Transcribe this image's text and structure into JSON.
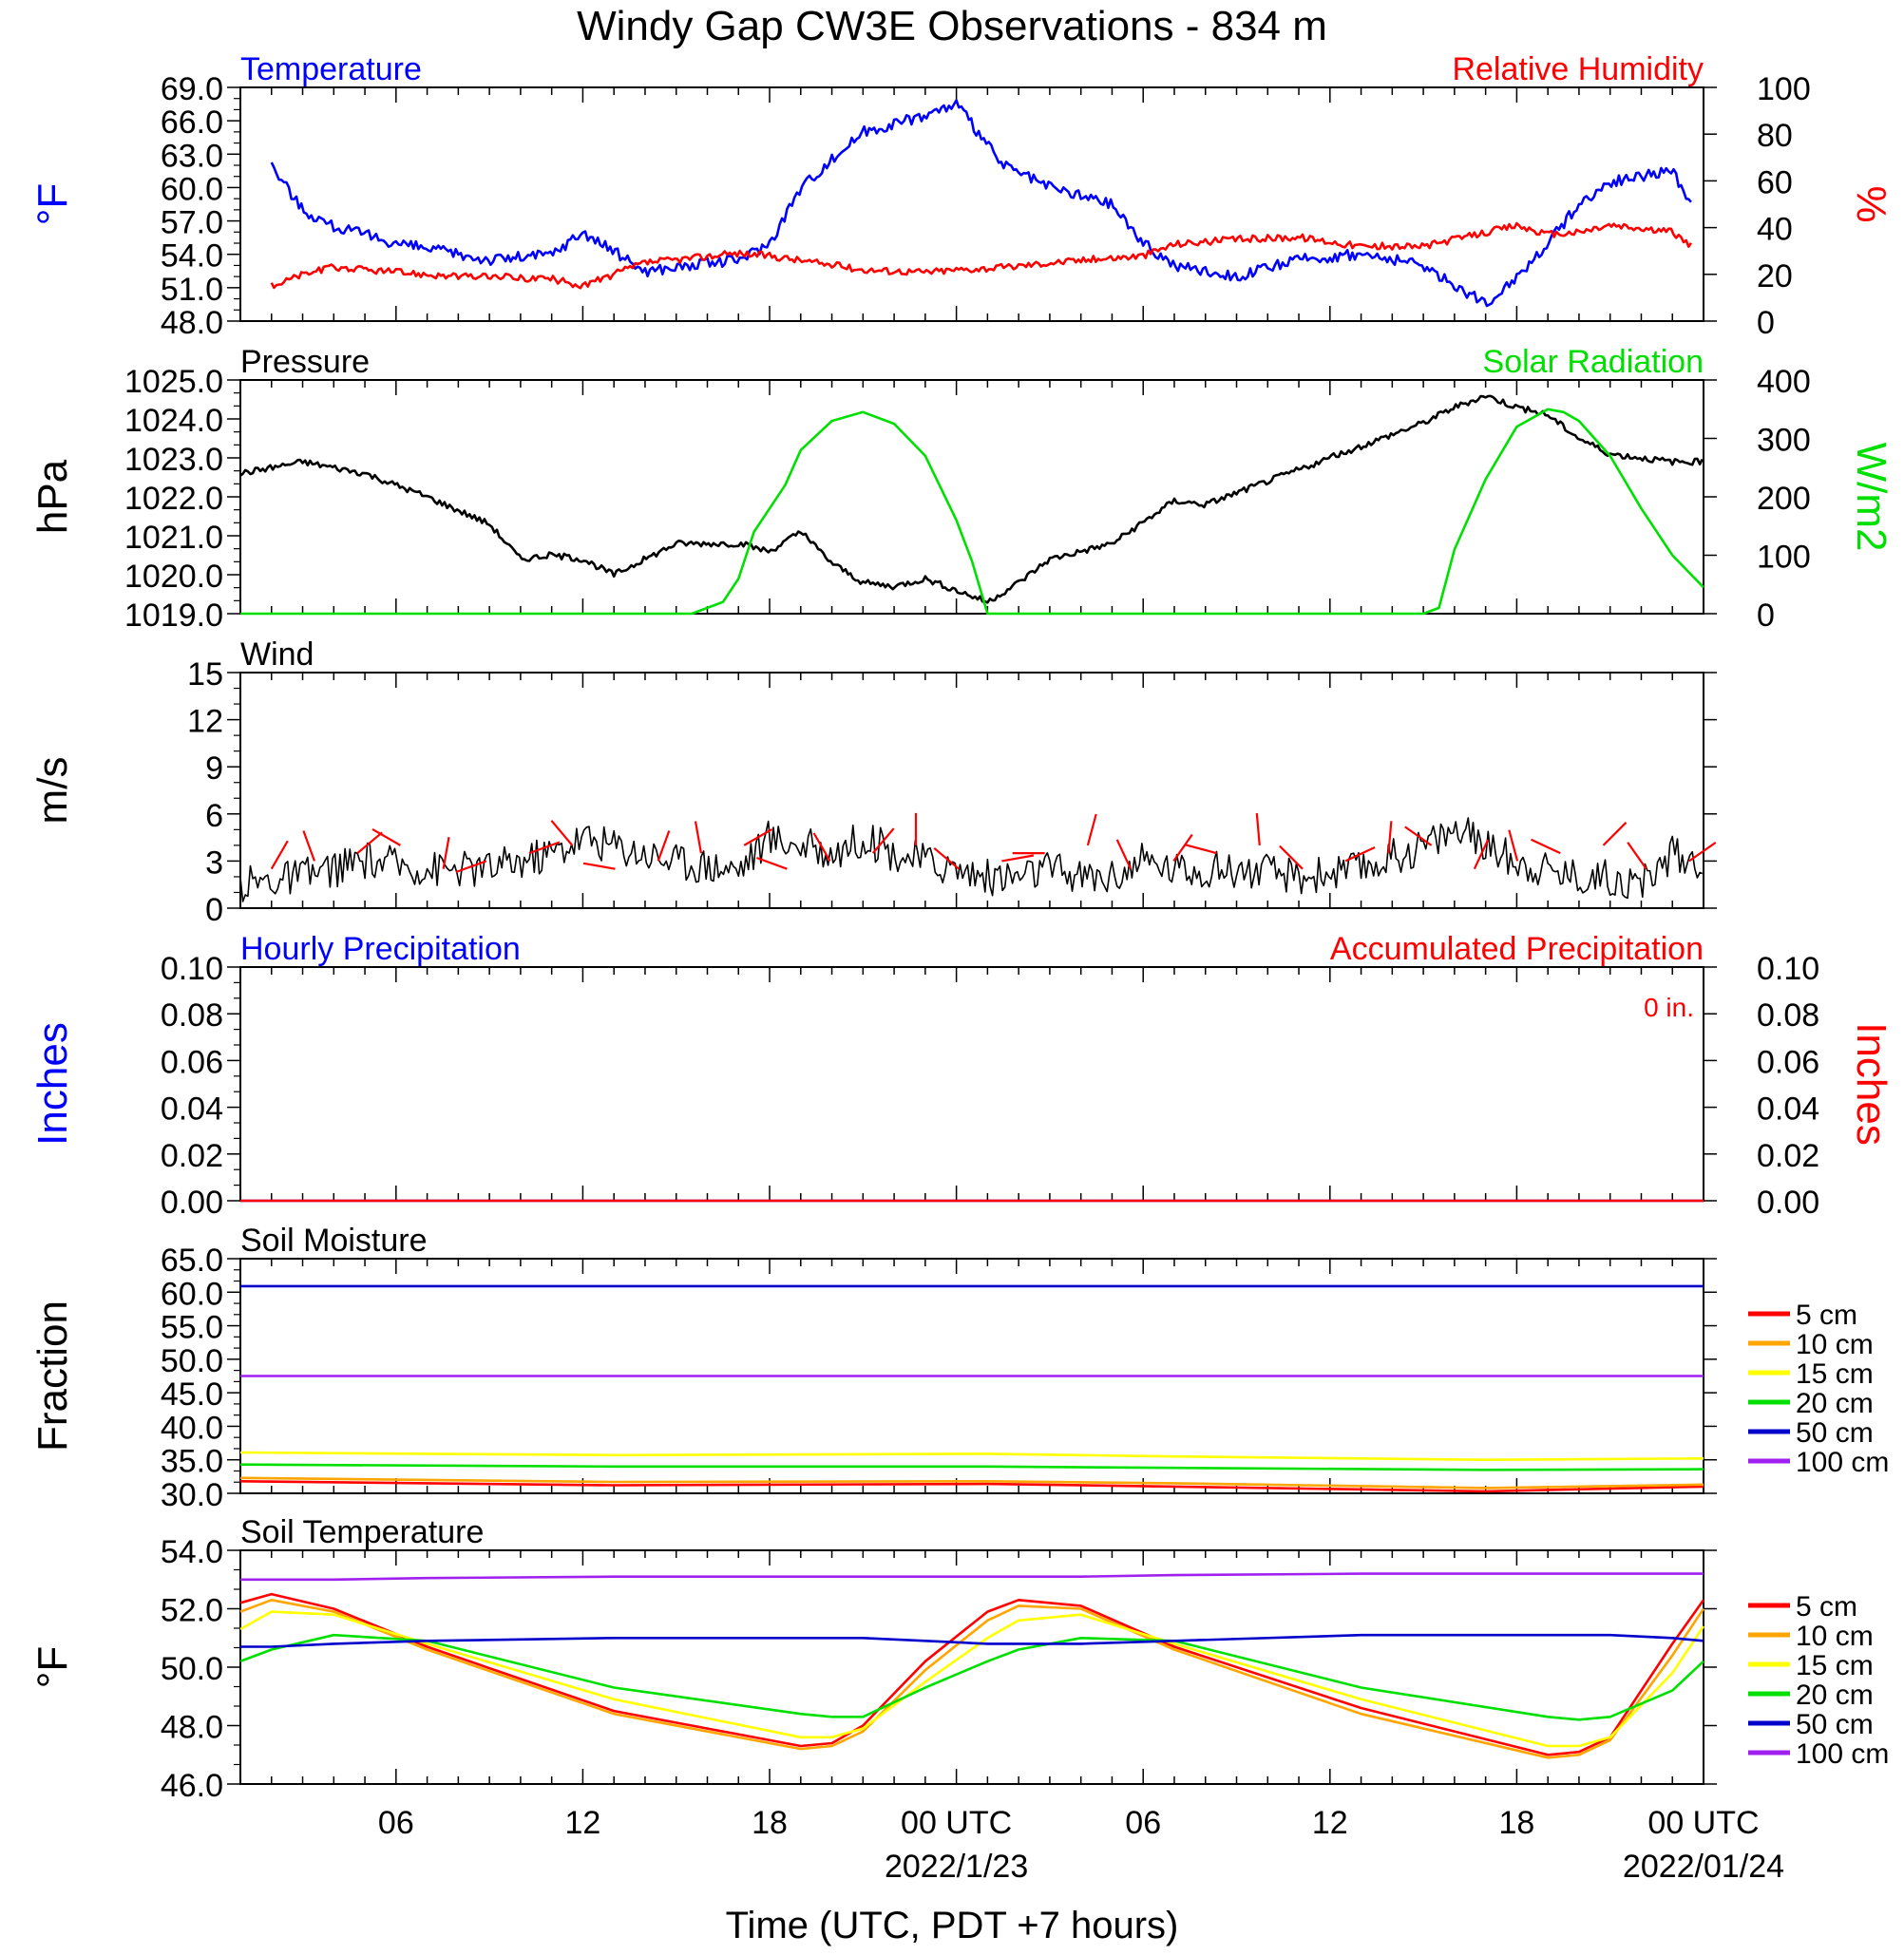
{
  "title": "Windy Gap CW3E Observations - 834 m",
  "xlabel": "Time (UTC, PDT +7 hours)",
  "xticks": [
    "06",
    "12",
    "18",
    "00 UTC",
    "06",
    "12",
    "18",
    "00 UTC"
  ],
  "dates": [
    "2022/1/23",
    "2022/01/24"
  ],
  "colors": {
    "blue": "#0000ff",
    "red": "#ff0000",
    "green": "#00e000",
    "black": "#000000",
    "orange": "#ffa500",
    "yellow": "#ffff00",
    "navy": "#0000cc",
    "purple": "#a020f0"
  },
  "chart_data": [
    {
      "id": "temp_rh",
      "type": "line",
      "left_title": "Temperature",
      "right_title": "Relative Humidity",
      "ylabel": "°F",
      "ylabel_right": "%",
      "ylim": [
        48,
        69
      ],
      "yticks": [
        "69.0",
        "66.0",
        "63.0",
        "60.0",
        "57.0",
        "54.0",
        "51.0",
        "48.0"
      ],
      "ylim_right": [
        0,
        100
      ],
      "yticks_right": [
        "100",
        "80",
        "60",
        "40",
        "20",
        "0"
      ],
      "x_hours": [
        1,
        2,
        3,
        5,
        7,
        8,
        10,
        11,
        13,
        16,
        17,
        18,
        20,
        22,
        23,
        24.5,
        26,
        28,
        29,
        30,
        32,
        34,
        36,
        38,
        40,
        41,
        42,
        43,
        44,
        46,
        46.6
      ],
      "series": [
        {
          "name": "Temperature",
          "axis": "left",
          "color": "#0000ff",
          "values": [
            62,
            58,
            56.5,
            55,
            54,
            53.5,
            54,
            56,
            52.5,
            53.5,
            55,
            60,
            65,
            66.5,
            67.5,
            62,
            60,
            58.5,
            55,
            53,
            52,
            53.5,
            54,
            53,
            49.5,
            52,
            55,
            58.5,
            60.5,
            61.5,
            58.5
          ]
        },
        {
          "name": "Relative Humidity",
          "axis": "right",
          "color": "#ff0000",
          "values": [
            15,
            20,
            23,
            21,
            19,
            19,
            18,
            15,
            25,
            29,
            28,
            26,
            22,
            21,
            22,
            23,
            25,
            27,
            28,
            33,
            35,
            36,
            32,
            32,
            38,
            41,
            37,
            38,
            41,
            38,
            32
          ]
        }
      ]
    },
    {
      "id": "pressure_solar",
      "type": "line",
      "left_title": "Pressure",
      "right_title": "Solar Radiation",
      "ylabel": "hPa",
      "ylabel_right": "W/m2",
      "ylim": [
        1019,
        1025
      ],
      "yticks": [
        "1025.0",
        "1024.0",
        "1023.0",
        "1022.0",
        "1021.0",
        "1020.0",
        "1019.0"
      ],
      "ylim_right": [
        0,
        400
      ],
      "yticks_right": [
        "400",
        "300",
        "200",
        "100",
        "0"
      ],
      "series": [
        {
          "name": "Pressure",
          "axis": "left",
          "color": "#000000",
          "x_hours": [
            0,
            2,
            4,
            6,
            8,
            9,
            10,
            11,
            12,
            13,
            14,
            16,
            17,
            18,
            19,
            20,
            21,
            22,
            24,
            25,
            26,
            28,
            30,
            31,
            32,
            34,
            36,
            38,
            39,
            40,
            41,
            42,
            43,
            44,
            45,
            46,
            47
          ],
          "values": [
            1022.6,
            1022.9,
            1022.6,
            1022,
            1021.3,
            1020.4,
            1020.5,
            1020.4,
            1020,
            1020.4,
            1020.8,
            1020.8,
            1020.6,
            1021.1,
            1020.3,
            1019.8,
            1019.7,
            1019.9,
            1019.3,
            1019.8,
            1020.4,
            1020.8,
            1021.9,
            1021.8,
            1022.1,
            1022.7,
            1023.3,
            1023.9,
            1024.3,
            1024.6,
            1024.3,
            1024.1,
            1023.5,
            1023.1,
            1023,
            1022.9,
            1022.9
          ]
        },
        {
          "name": "Solar Radiation",
          "axis": "right",
          "color": "#00e000",
          "x_hours": [
            0,
            14.5,
            15.5,
            16,
            16.5,
            17,
            17.5,
            18,
            19,
            20,
            21,
            22,
            23,
            23.5,
            24,
            38,
            38.5,
            39,
            40,
            41,
            42,
            42.5,
            43,
            44,
            45,
            46,
            47
          ],
          "values": [
            0,
            0,
            20,
            60,
            140,
            180,
            220,
            280,
            330,
            345,
            325,
            270,
            160,
            90,
            0,
            0,
            10,
            110,
            230,
            320,
            350,
            345,
            330,
            270,
            180,
            100,
            45
          ]
        }
      ]
    },
    {
      "id": "wind",
      "type": "line",
      "left_title": "Wind",
      "ylabel": "m/s",
      "ylim": [
        0,
        15
      ],
      "yticks": [
        "15",
        "12",
        "9",
        "6",
        "3",
        "0"
      ],
      "series": [
        {
          "name": "Wind",
          "color": "#000000",
          "x_hours": [
            0,
            2,
            4,
            6,
            8,
            10,
            11,
            12,
            14,
            16,
            17,
            18,
            19,
            20,
            21,
            22,
            23,
            24,
            25,
            26,
            27,
            28,
            29,
            30,
            32,
            34,
            36,
            38,
            39,
            40,
            41,
            42,
            43,
            44,
            45,
            46,
            47
          ],
          "values": [
            1.5,
            2,
            3,
            2.5,
            2.5,
            3.5,
            4.5,
            4,
            3,
            2.5,
            4.5,
            4,
            3.5,
            4.5,
            3.5,
            3,
            2.5,
            2,
            2,
            2.5,
            2,
            2,
            3,
            2.5,
            2.5,
            2,
            2.5,
            4,
            5,
            4,
            3,
            2.5,
            2,
            2,
            1.5,
            3.5,
            3
          ]
        }
      ]
    },
    {
      "id": "precip",
      "type": "line",
      "left_title": "Hourly Precipitation",
      "right_title": "Accumulated Precipitation",
      "annotation": "0 in.",
      "ylabel": "Inches",
      "ylabel_right": "Inches",
      "ylim": [
        0,
        0.1
      ],
      "yticks": [
        "0.10",
        "0.08",
        "0.06",
        "0.04",
        "0.02",
        "0.00"
      ],
      "series": [
        {
          "name": "Hourly Precipitation",
          "color": "#0000ff",
          "x_hours": [
            0,
            47
          ],
          "values": [
            0,
            0
          ]
        },
        {
          "name": "Accumulated Precipitation",
          "color": "#ff0000",
          "x_hours": [
            0,
            47
          ],
          "values": [
            0,
            0
          ]
        }
      ]
    },
    {
      "id": "soil_moisture",
      "type": "line",
      "left_title": "Soil Moisture",
      "ylabel": "Fraction",
      "ylim": [
        30,
        65
      ],
      "yticks": [
        "65.0",
        "60.0",
        "55.0",
        "50.0",
        "45.0",
        "40.0",
        "35.0",
        "30.0"
      ],
      "legend": [
        "5 cm",
        "10 cm",
        "15 cm",
        "20 cm",
        "50 cm",
        "100 cm"
      ],
      "x_hours": [
        0,
        12,
        24,
        30,
        40,
        47
      ],
      "series": [
        {
          "name": "5 cm",
          "color": "#ff0000",
          "values": [
            31.8,
            31.2,
            31.4,
            31.0,
            30.3,
            31.0
          ]
        },
        {
          "name": "10 cm",
          "color": "#ffa500",
          "values": [
            32.3,
            31.7,
            31.8,
            31.5,
            30.8,
            31.3
          ]
        },
        {
          "name": "15 cm",
          "color": "#ffff00",
          "values": [
            36.1,
            35.7,
            35.9,
            35.5,
            35.0,
            35.2
          ]
        },
        {
          "name": "20 cm",
          "color": "#00e000",
          "values": [
            34.3,
            34.0,
            34.0,
            33.8,
            33.5,
            33.6
          ]
        },
        {
          "name": "50 cm",
          "color": "#0000cc",
          "values": [
            60.9,
            60.9,
            60.9,
            60.9,
            60.9,
            60.9
          ]
        },
        {
          "name": "100 cm",
          "color": "#a020f0",
          "values": [
            47.5,
            47.5,
            47.5,
            47.5,
            47.5,
            47.5
          ]
        }
      ]
    },
    {
      "id": "soil_temp",
      "type": "line",
      "left_title": "Soil Temperature",
      "ylabel": "°F",
      "ylim": [
        46,
        54
      ],
      "yticks": [
        "54.0",
        "52.0",
        "50.0",
        "48.0",
        "46.0"
      ],
      "legend": [
        "5 cm",
        "10 cm",
        "15 cm",
        "20 cm",
        "50 cm",
        "100 cm"
      ],
      "x_hours": [
        0,
        1,
        3,
        6,
        12,
        18,
        19,
        20,
        22,
        24,
        25,
        27,
        30,
        36,
        42,
        43,
        44,
        46,
        47
      ],
      "series": [
        {
          "name": "5 cm",
          "color": "#ff0000",
          "values": [
            52.2,
            52.5,
            52.0,
            50.7,
            48.5,
            47.3,
            47.4,
            48.0,
            50.2,
            51.9,
            52.3,
            52.1,
            50.7,
            48.6,
            47.0,
            47.1,
            47.6,
            50.8,
            52.3
          ]
        },
        {
          "name": "10 cm",
          "color": "#ffa500",
          "values": [
            51.9,
            52.3,
            51.9,
            50.6,
            48.4,
            47.2,
            47.3,
            47.8,
            49.9,
            51.6,
            52.1,
            52.0,
            50.6,
            48.4,
            46.9,
            47.0,
            47.5,
            50.4,
            52.0
          ]
        },
        {
          "name": "15 cm",
          "color": "#ffff00",
          "values": [
            51.3,
            51.9,
            51.8,
            50.8,
            48.9,
            47.6,
            47.6,
            47.9,
            49.5,
            51.0,
            51.6,
            51.8,
            50.8,
            48.9,
            47.3,
            47.3,
            47.6,
            49.8,
            51.4
          ]
        },
        {
          "name": "20 cm",
          "color": "#00e000",
          "values": [
            50.2,
            50.6,
            51.1,
            50.9,
            49.3,
            48.4,
            48.3,
            48.3,
            49.3,
            50.2,
            50.6,
            51.0,
            50.9,
            49.3,
            48.3,
            48.2,
            48.3,
            49.2,
            50.2
          ]
        },
        {
          "name": "50 cm",
          "color": "#0000cc",
          "values": [
            50.7,
            50.7,
            50.8,
            50.9,
            51.0,
            51.0,
            51.0,
            51.0,
            50.9,
            50.8,
            50.8,
            50.8,
            50.9,
            51.1,
            51.1,
            51.1,
            51.1,
            51.0,
            50.9
          ]
        },
        {
          "name": "100 cm",
          "color": "#a020f0",
          "values": [
            53.0,
            53.0,
            53.0,
            53.05,
            53.1,
            53.1,
            53.1,
            53.1,
            53.1,
            53.1,
            53.1,
            53.1,
            53.15,
            53.2,
            53.2,
            53.2,
            53.2,
            53.2,
            53.2
          ]
        }
      ]
    }
  ]
}
